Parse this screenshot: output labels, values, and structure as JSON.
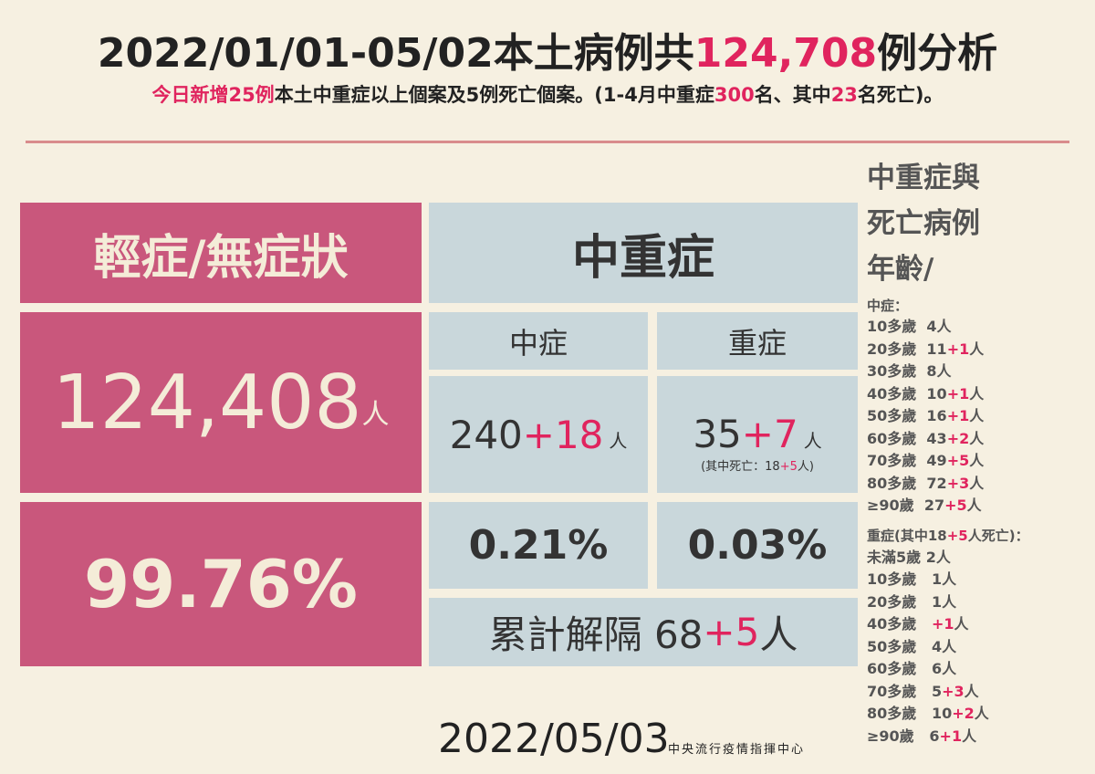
{
  "header": {
    "title": [
      "2022/01/01-05/02本土病例共",
      "124,708",
      "例分析"
    ],
    "subtitle": [
      "",
      "今日新增25例",
      "本土中重症以上個案及5例死亡個案。(1-4月中重症",
      "300",
      "名、其中",
      "23",
      "名死亡)。"
    ]
  },
  "mild": {
    "label": "輕症/無症狀",
    "count": "124,408",
    "unit": "人",
    "percent": "99.76%"
  },
  "severe_panel": {
    "title": "中重症",
    "moderate": {
      "label": "中症",
      "value": [
        "240",
        "+18"
      ],
      "unit": "人",
      "percent": "0.21%"
    },
    "severe": {
      "label": "重症",
      "value": [
        "35",
        "+7"
      ],
      "unit": "人",
      "note": [
        "(其中死亡：18",
        "+5",
        "人)"
      ],
      "percent": "0.03%"
    },
    "released": [
      "累計解隔 68",
      "+5",
      "人"
    ]
  },
  "ages": {
    "heading": [
      "中重症與",
      "死亡病例",
      "年齡/"
    ],
    "moderate_heading": "中症：",
    "moderate": [
      [
        "10多歲  4人"
      ],
      [
        "20多歲  11",
        "+1",
        "人"
      ],
      [
        "30多歲  8人"
      ],
      [
        "40多歲  10",
        "+1",
        "人"
      ],
      [
        "50多歲  16",
        "+1",
        "人"
      ],
      [
        "60多歲  43",
        "+2",
        "人"
      ],
      [
        "70多歲  49",
        "+5",
        "人"
      ],
      [
        "80多歲  72",
        "+3",
        "人"
      ],
      [
        "≥90歲  27",
        "+5",
        "人"
      ]
    ],
    "severe_heading": [
      "重症(其中18",
      "+5",
      "人死亡)："
    ],
    "severe": [
      [
        "未滿5歲 2人"
      ],
      [
        "10多歲   1人"
      ],
      [
        "20多歲   1人"
      ],
      [
        "40多歲   ",
        "+1",
        "人"
      ],
      [
        "50多歲   4人"
      ],
      [
        "60多歲   6人"
      ],
      [
        "70多歲   5",
        "+3",
        "人"
      ],
      [
        "80多歲   10",
        "+2",
        "人"
      ],
      [
        "≥90歲   6",
        "+1",
        "人"
      ]
    ]
  },
  "footer": {
    "date": "2022/05/03",
    "org": "中央流行疫情指揮中心"
  }
}
